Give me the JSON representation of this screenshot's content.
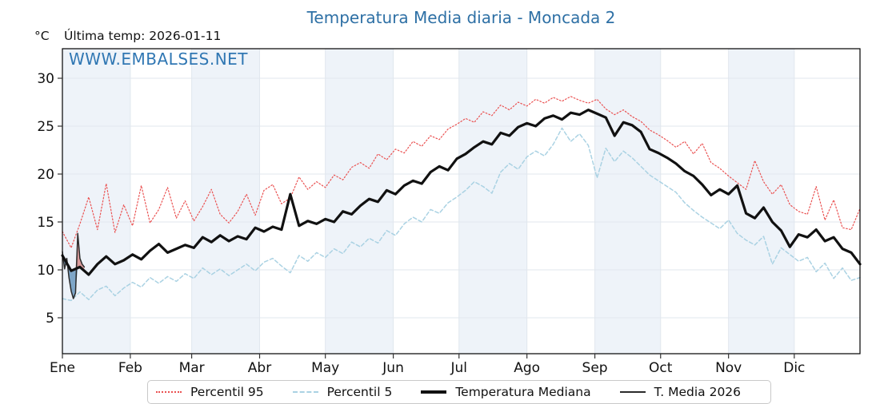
{
  "header": {
    "title": "Temperatura Media diaria - Moncada 2",
    "unit_label": "°C",
    "last_temp_label": "Última temp: 2026-01-11"
  },
  "watermark": "WWW.EMBALSES.NET",
  "colors": {
    "title": "#2e70a5",
    "watermark": "#3077b3",
    "percentil95": "#ea5252",
    "percentil5": "#aad2e3",
    "mediana": "#111111",
    "t_media_2026": "#2b2b2b",
    "fill_above_median": "#d99a9a",
    "fill_below_median": "#7ea6c8",
    "month_stripe": "#eef3f9",
    "gridline": "#e1e7ee",
    "axis_border": "#000000",
    "tick_label": "#111111"
  },
  "chart_data": {
    "type": "line",
    "title": "Temperatura Media diaria - Moncada 2",
    "ylabel": "°C",
    "x_tick_labels": [
      "Ene",
      "Feb",
      "Mar",
      "Abr",
      "May",
      "Jun",
      "Jul",
      "Ago",
      "Sep",
      "Oct",
      "Nov",
      "Dic"
    ],
    "month_start_days": [
      1,
      32,
      60,
      91,
      121,
      152,
      182,
      213,
      244,
      274,
      305,
      335
    ],
    "y_ticks": [
      5,
      10,
      15,
      20,
      25,
      30
    ],
    "ylim": [
      1.3,
      33.1
    ],
    "xlim_days": [
      1,
      365
    ],
    "grid": true,
    "legend_position": "bottom",
    "series": [
      {
        "name": "Percentil 95",
        "style": "dotted",
        "days": [
          1,
          5,
          9,
          13,
          17,
          21,
          25,
          29,
          33,
          37,
          41,
          45,
          49,
          53,
          57,
          61,
          65,
          69,
          73,
          77,
          81,
          85,
          89,
          93,
          97,
          101,
          105,
          109,
          113,
          117,
          121,
          125,
          129,
          133,
          137,
          141,
          145,
          149,
          153,
          157,
          161,
          165,
          169,
          173,
          177,
          181,
          185,
          189,
          193,
          197,
          201,
          205,
          209,
          213,
          217,
          221,
          225,
          229,
          233,
          237,
          241,
          245,
          249,
          253,
          257,
          261,
          265,
          269,
          273,
          277,
          281,
          285,
          289,
          293,
          297,
          301,
          305,
          309,
          313,
          317,
          321,
          325,
          329,
          333,
          337,
          341,
          345,
          349,
          353,
          357,
          361,
          365
        ],
        "values": [
          14.0,
          12.3,
          14.8,
          17.6,
          14.2,
          19.0,
          13.9,
          16.8,
          14.6,
          18.8,
          14.9,
          16.3,
          18.6,
          15.4,
          17.2,
          15.1,
          16.6,
          18.4,
          15.8,
          14.9,
          16.1,
          17.9,
          15.7,
          18.3,
          18.9,
          16.9,
          17.5,
          19.7,
          18.4,
          19.2,
          18.6,
          19.9,
          19.4,
          20.7,
          21.2,
          20.6,
          22.1,
          21.5,
          22.6,
          22.2,
          23.4,
          22.9,
          24.0,
          23.6,
          24.7,
          25.2,
          25.8,
          25.4,
          26.5,
          26.1,
          27.2,
          26.7,
          27.5,
          27.1,
          27.8,
          27.4,
          28.0,
          27.6,
          28.1,
          27.7,
          27.4,
          27.8,
          26.8,
          26.2,
          26.7,
          26.0,
          25.5,
          24.6,
          24.1,
          23.5,
          22.8,
          23.4,
          22.1,
          23.2,
          21.2,
          20.6,
          19.8,
          19.1,
          18.4,
          21.4,
          19.2,
          17.9,
          18.9,
          16.8,
          16.1,
          15.8,
          18.7,
          15.2,
          17.3,
          14.4,
          14.2,
          16.4
        ]
      },
      {
        "name": "Percentil 5",
        "style": "dashed",
        "days": [
          1,
          5,
          9,
          13,
          17,
          21,
          25,
          29,
          33,
          37,
          41,
          45,
          49,
          53,
          57,
          61,
          65,
          69,
          73,
          77,
          81,
          85,
          89,
          93,
          97,
          101,
          105,
          109,
          113,
          117,
          121,
          125,
          129,
          133,
          137,
          141,
          145,
          149,
          153,
          157,
          161,
          165,
          169,
          173,
          177,
          181,
          185,
          189,
          193,
          197,
          201,
          205,
          209,
          213,
          217,
          221,
          225,
          229,
          233,
          237,
          241,
          245,
          249,
          253,
          257,
          261,
          265,
          269,
          273,
          277,
          281,
          285,
          289,
          293,
          297,
          301,
          305,
          309,
          313,
          317,
          321,
          325,
          329,
          333,
          337,
          341,
          345,
          349,
          353,
          357,
          361,
          365
        ],
        "values": [
          7.0,
          6.8,
          7.7,
          6.9,
          7.9,
          8.3,
          7.3,
          8.1,
          8.7,
          8.2,
          9.2,
          8.6,
          9.3,
          8.8,
          9.6,
          9.1,
          10.2,
          9.5,
          10.1,
          9.4,
          10.0,
          10.6,
          9.9,
          10.8,
          11.2,
          10.4,
          9.7,
          11.5,
          10.9,
          11.8,
          11.3,
          12.2,
          11.7,
          12.9,
          12.4,
          13.3,
          12.8,
          14.1,
          13.6,
          14.8,
          15.5,
          15.0,
          16.3,
          15.9,
          17.0,
          17.6,
          18.3,
          19.2,
          18.7,
          18.0,
          20.2,
          21.1,
          20.5,
          21.8,
          22.4,
          21.9,
          23.1,
          24.8,
          23.4,
          24.2,
          23.0,
          19.6,
          22.7,
          21.3,
          22.4,
          21.7,
          20.8,
          19.9,
          19.3,
          18.7,
          18.1,
          17.0,
          16.2,
          15.5,
          14.9,
          14.3,
          15.2,
          13.8,
          13.1,
          12.6,
          13.5,
          10.6,
          12.3,
          11.6,
          10.9,
          11.3,
          9.8,
          10.7,
          9.1,
          10.2,
          8.9,
          9.2
        ]
      },
      {
        "name": "Temperatura Mediana",
        "style": "solid-thick",
        "days": [
          1,
          5,
          9,
          13,
          17,
          21,
          25,
          29,
          33,
          37,
          41,
          45,
          49,
          53,
          57,
          61,
          65,
          69,
          73,
          77,
          81,
          85,
          89,
          93,
          97,
          101,
          105,
          109,
          113,
          117,
          121,
          125,
          129,
          133,
          137,
          141,
          145,
          149,
          153,
          157,
          161,
          165,
          169,
          173,
          177,
          181,
          185,
          189,
          193,
          197,
          201,
          205,
          209,
          213,
          217,
          221,
          225,
          229,
          233,
          237,
          241,
          245,
          249,
          253,
          257,
          261,
          265,
          269,
          273,
          277,
          281,
          285,
          289,
          293,
          297,
          301,
          305,
          309,
          313,
          317,
          321,
          325,
          329,
          333,
          337,
          341,
          345,
          349,
          353,
          357,
          361,
          365
        ],
        "values": [
          11.5,
          9.9,
          10.3,
          9.5,
          10.6,
          11.4,
          10.6,
          11.0,
          11.6,
          11.1,
          12.0,
          12.7,
          11.8,
          12.2,
          12.6,
          12.3,
          13.4,
          12.9,
          13.6,
          13.0,
          13.5,
          13.2,
          14.4,
          14.0,
          14.5,
          14.2,
          17.9,
          14.6,
          15.1,
          14.8,
          15.3,
          15.0,
          16.1,
          15.8,
          16.7,
          17.4,
          17.1,
          18.3,
          17.9,
          18.8,
          19.3,
          19.0,
          20.2,
          20.8,
          20.4,
          21.6,
          22.1,
          22.8,
          23.4,
          23.1,
          24.3,
          24.0,
          24.9,
          25.3,
          25.0,
          25.8,
          26.1,
          25.7,
          26.4,
          26.2,
          26.7,
          26.3,
          25.9,
          24.0,
          25.4,
          25.1,
          24.4,
          22.6,
          22.2,
          21.7,
          21.1,
          20.3,
          19.8,
          18.9,
          17.8,
          18.4,
          17.9,
          18.8,
          15.9,
          15.4,
          16.5,
          15.0,
          14.1,
          12.4,
          13.7,
          13.4,
          14.2,
          13.0,
          13.4,
          12.2,
          11.8,
          10.6
        ]
      },
      {
        "name": "T. Media 2026",
        "style": "solid-thin",
        "days": [
          1,
          2,
          3,
          4,
          5,
          6,
          7,
          8,
          9,
          10,
          11
        ],
        "values": [
          11.9,
          10.1,
          11.2,
          9.2,
          7.8,
          7.0,
          7.6,
          13.8,
          11.2,
          10.6,
          10.3
        ]
      }
    ],
    "fills": {
      "description": "area between T. Media 2026 and Temperatura Mediana, pink where above, blue where below",
      "baseline_series": "Temperatura Mediana",
      "compare_series": "T. Media 2026"
    }
  },
  "legend": {
    "items": [
      {
        "label": "Percentil 95",
        "sample": "dotted",
        "color": "#ea5252",
        "thickness": 2
      },
      {
        "label": "Percentil 5",
        "sample": "dashed",
        "color": "#aad2e3",
        "thickness": 2
      },
      {
        "label": "Temperatura Mediana",
        "sample": "solid-thick",
        "color": "#111111",
        "thickness": 3.4
      },
      {
        "label": "T. Media 2026",
        "sample": "solid-thin",
        "color": "#2b2b2b",
        "thickness": 1.6
      }
    ]
  }
}
